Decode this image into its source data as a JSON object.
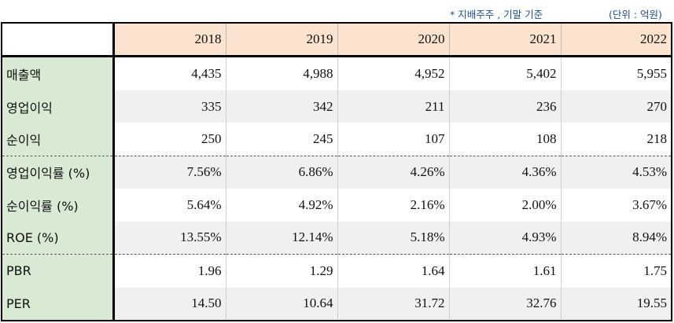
{
  "note": {
    "basis": "* 지배주주 , 기말 기준",
    "unit": "(단위 : 억원)"
  },
  "years": [
    "2018",
    "2019",
    "2020",
    "2021",
    "2022"
  ],
  "rows": [
    {
      "label": "매출액",
      "values": [
        "4,435",
        "4,988",
        "4,952",
        "5,402",
        "5,955"
      ]
    },
    {
      "label": "영업이익",
      "values": [
        "335",
        "342",
        "211",
        "236",
        "270"
      ]
    },
    {
      "label": "순이익",
      "values": [
        "250",
        "245",
        "107",
        "108",
        "218"
      ]
    },
    {
      "label": "영업이익률 (%)",
      "values": [
        "7.56%",
        "6.86%",
        "4.26%",
        "4.36%",
        "4.53%"
      ]
    },
    {
      "label": "순이익률 (%)",
      "values": [
        "5.64%",
        "4.92%",
        "2.16%",
        "2.00%",
        "3.67%"
      ]
    },
    {
      "label": "ROE (%)",
      "values": [
        "13.55%",
        "12.14%",
        "5.18%",
        "4.93%",
        "8.94%"
      ]
    },
    {
      "label": "PBR",
      "values": [
        "1.96",
        "1.29",
        "1.64",
        "1.61",
        "1.75"
      ]
    },
    {
      "label": "PER",
      "values": [
        "14.50",
        "10.64",
        "31.72",
        "32.76",
        "19.55"
      ]
    }
  ]
}
